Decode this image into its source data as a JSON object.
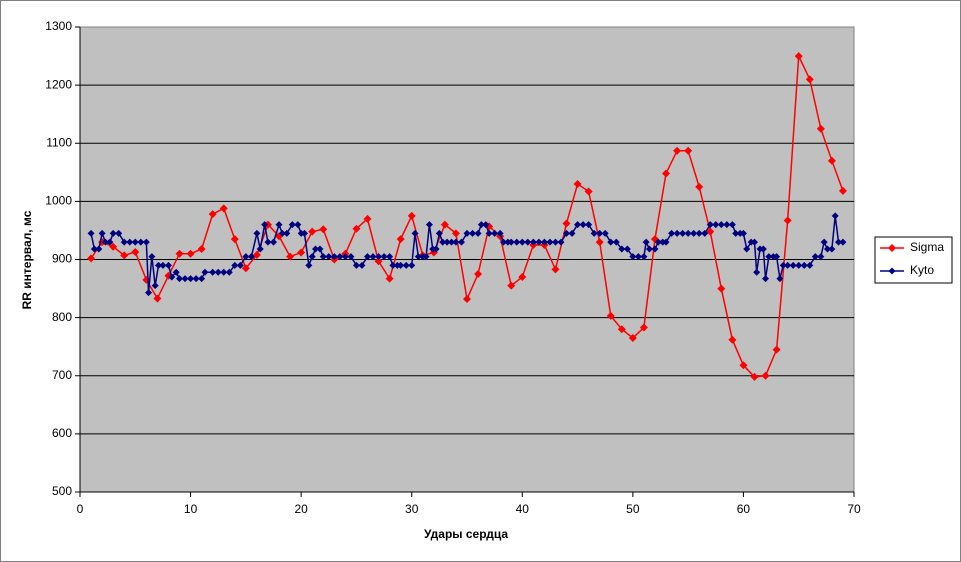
{
  "chart_data": {
    "type": "line",
    "x_label": "Удары сердца",
    "y_label": "RR интервал, мс",
    "xlim": [
      0,
      70
    ],
    "xticks": [
      0,
      10,
      20,
      30,
      40,
      50,
      60,
      70
    ],
    "ylim": [
      500,
      1300
    ],
    "yticks": [
      500,
      600,
      700,
      800,
      900,
      1000,
      1100,
      1200,
      1300
    ],
    "grid": true,
    "legend": "right",
    "series": [
      {
        "name": "Sigma",
        "color": "#ff0000",
        "x": [
          1,
          2,
          3,
          4,
          5,
          6,
          7,
          8,
          9,
          10,
          11,
          12,
          13,
          14,
          15,
          16,
          17,
          18,
          19,
          20,
          21,
          22,
          23,
          24,
          25,
          26,
          27,
          28,
          29,
          30,
          31,
          32,
          33,
          34,
          35,
          36,
          37,
          38,
          39,
          40,
          41,
          42,
          43,
          44,
          45,
          46,
          47,
          48,
          49,
          50,
          51,
          52,
          53,
          54,
          55,
          56,
          57,
          58,
          59,
          60,
          61,
          62,
          63,
          64,
          65,
          66,
          67,
          68,
          69
        ],
        "values": [
          902,
          930,
          922,
          907,
          913,
          865,
          833,
          872,
          910,
          910,
          918,
          978,
          988,
          935,
          885,
          908,
          960,
          940,
          905,
          912,
          948,
          952,
          900,
          910,
          953,
          970,
          897,
          867,
          935,
          975,
          907,
          912,
          960,
          945,
          832,
          875,
          957,
          940,
          855,
          870,
          925,
          925,
          883,
          962,
          1030,
          1017,
          930,
          803,
          780,
          765,
          783,
          935,
          1048,
          1087,
          1087,
          1025,
          948,
          850,
          762,
          718,
          698,
          700,
          745,
          967,
          1250,
          1210,
          1125,
          1070,
          1018
        ]
      },
      {
        "name": "Kyto",
        "color": "#000080",
        "x": [
          1,
          1.3,
          1.7,
          2,
          2.3,
          2.7,
          3,
          3.5,
          4,
          4.5,
          5,
          5.5,
          6,
          6.2,
          6.5,
          6.8,
          7.1,
          7.5,
          8,
          8.3,
          8.7,
          9,
          9.5,
          10,
          10.5,
          11,
          11.3,
          12,
          12.5,
          13,
          13.5,
          14,
          14.5,
          15,
          15.5,
          16,
          16.3,
          16.7,
          17,
          17.5,
          18,
          18.3,
          18.7,
          19.2,
          19.7,
          20,
          20.3,
          20.7,
          21,
          21.3,
          21.7,
          22,
          22.5,
          23,
          23.5,
          24,
          24.5,
          25,
          25.5,
          26,
          26.5,
          27,
          27.5,
          28,
          28.3,
          28.7,
          29,
          29.5,
          30,
          30.3,
          30.6,
          31,
          31.3,
          31.6,
          31.9,
          32.2,
          32.5,
          32.8,
          33.2,
          33.6,
          34,
          34.5,
          35,
          35.5,
          36,
          36.3,
          36.7,
          37,
          37.5,
          38,
          38.3,
          38.7,
          39,
          39.5,
          40,
          40.5,
          41,
          41.5,
          42,
          42.5,
          43,
          43.5,
          44,
          44.5,
          45,
          45.5,
          46,
          46.5,
          47,
          47.5,
          48,
          48.5,
          49,
          49.5,
          50,
          50.5,
          51,
          51.2,
          51.5,
          52,
          52.3,
          52.7,
          53,
          53.5,
          54,
          54.5,
          55,
          55.5,
          56,
          56.5,
          57,
          57.5,
          58,
          58.5,
          59,
          59.3,
          59.7,
          60,
          60.3,
          60.7,
          61,
          61.2,
          61.5,
          61.8,
          62,
          62.3,
          62.7,
          63,
          63.3,
          63.6,
          64,
          64.5,
          65,
          65.5,
          66,
          66.5,
          67,
          67.3,
          67.6,
          68,
          68.3,
          68.6,
          69
        ],
        "values": [
          945,
          918,
          918,
          945,
          930,
          930,
          945,
          945,
          930,
          930,
          930,
          930,
          930,
          843,
          905,
          855,
          890,
          890,
          890,
          870,
          878,
          867,
          867,
          867,
          867,
          867,
          878,
          878,
          878,
          878,
          878,
          890,
          890,
          905,
          905,
          945,
          918,
          960,
          930,
          930,
          960,
          945,
          945,
          960,
          960,
          945,
          945,
          890,
          905,
          918,
          918,
          905,
          905,
          905,
          905,
          905,
          905,
          890,
          890,
          905,
          905,
          905,
          905,
          905,
          890,
          890,
          890,
          890,
          890,
          945,
          905,
          905,
          905,
          960,
          918,
          918,
          945,
          930,
          930,
          930,
          930,
          930,
          945,
          945,
          945,
          960,
          960,
          945,
          945,
          945,
          930,
          930,
          930,
          930,
          930,
          930,
          930,
          930,
          930,
          930,
          930,
          930,
          945,
          945,
          960,
          960,
          960,
          945,
          945,
          945,
          930,
          930,
          918,
          918,
          905,
          905,
          905,
          930,
          918,
          918,
          930,
          930,
          930,
          945,
          945,
          945,
          945,
          945,
          945,
          945,
          960,
          960,
          960,
          960,
          960,
          945,
          945,
          945,
          918,
          930,
          930,
          878,
          918,
          918,
          867,
          905,
          905,
          905,
          867,
          890,
          890,
          890,
          890,
          890,
          890,
          905,
          905,
          930,
          918,
          918,
          975,
          930,
          930
        ]
      }
    ]
  }
}
